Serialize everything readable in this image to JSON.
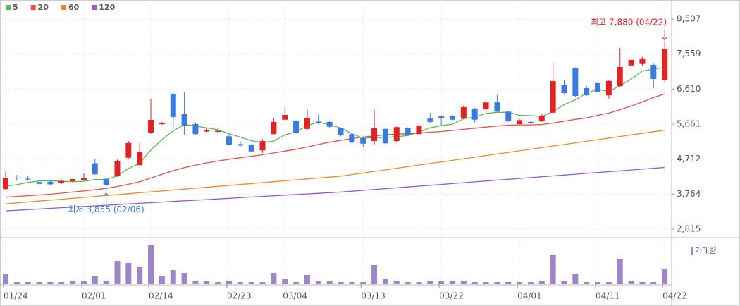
{
  "chart_data": {
    "type": "candlestick",
    "categories": [
      "01/24",
      null,
      null,
      null,
      null,
      null,
      null,
      "02/01",
      null,
      null,
      null,
      null,
      null,
      "02/14",
      null,
      null,
      null,
      null,
      null,
      null,
      "02/23",
      null,
      null,
      null,
      null,
      "03/04",
      null,
      null,
      null,
      null,
      null,
      null,
      "03/13",
      null,
      null,
      null,
      null,
      null,
      null,
      "03/22",
      null,
      null,
      null,
      null,
      null,
      null,
      "04/01",
      null,
      null,
      null,
      null,
      null,
      null,
      "04/11",
      null,
      null,
      null,
      null,
      null,
      "04/22"
    ],
    "open": [
      3900,
      4210,
      4180,
      4090,
      4100,
      4060,
      4110,
      4150,
      4600,
      4180,
      4250,
      4750,
      4550,
      5432,
      5660,
      6482,
      5930,
      5660,
      5460,
      5450,
      5330,
      5120,
      5100,
      4950,
      5390,
      5780,
      5740,
      5530,
      5730,
      5720,
      5550,
      5390,
      5280,
      5200,
      5530,
      5200,
      5550,
      5390,
      5810,
      5870,
      5890,
      5810,
      6080,
      6060,
      6250,
      6000,
      5660,
      5720,
      5740,
      5970,
      6730,
      7190,
      6636,
      6770,
      6440,
      6690,
      7250,
      7290,
      7266,
      6865
    ],
    "high": [
      4380,
      4280,
      4250,
      4120,
      4140,
      4160,
      4200,
      4330,
      4725,
      4200,
      4700,
      5200,
      5150,
      6348,
      5720,
      6510,
      6520,
      5700,
      5560,
      5550,
      5380,
      5200,
      5120,
      5250,
      5820,
      6120,
      5760,
      6060,
      5930,
      5740,
      5570,
      5440,
      5300,
      6043,
      5560,
      5600,
      5570,
      5650,
      5960,
      5900,
      5910,
      6160,
      6100,
      6330,
      6450,
      6010,
      5790,
      5760,
      5930,
      7303,
      6850,
      7200,
      6700,
      6790,
      6850,
      7724,
      7450,
      7480,
      7300,
      7880
    ],
    "low": [
      3870,
      4120,
      4120,
      4020,
      4000,
      4040,
      4090,
      4130,
      4290,
      3855,
      4230,
      4720,
      4530,
      5400,
      5640,
      5540,
      5370,
      5370,
      5440,
      5400,
      5080,
      5050,
      4900,
      4880,
      5380,
      5760,
      5400,
      5500,
      5650,
      5560,
      5330,
      5140,
      5040,
      5100,
      5120,
      5180,
      5340,
      5370,
      5680,
      5600,
      5760,
      5790,
      5700,
      6040,
      5980,
      5720,
      5640,
      5660,
      5720,
      5950,
      6480,
      6400,
      6420,
      6520,
      6350,
      6660,
      7150,
      7250,
      6636,
      6800
    ],
    "close": [
      4200,
      4200,
      4170,
      4040,
      4030,
      4120,
      4170,
      4200,
      4300,
      4000,
      4650,
      5150,
      4900,
      5776,
      5700,
      5850,
      5620,
      5390,
      5500,
      5480,
      5100,
      5080,
      4920,
      5200,
      5720,
      5910,
      5430,
      5830,
      5680,
      5590,
      5360,
      5160,
      5130,
      5550,
      5140,
      5580,
      5360,
      5620,
      5720,
      5830,
      5780,
      6120,
      5780,
      6250,
      6000,
      5740,
      5770,
      5690,
      5890,
      6826,
      6500,
      6425,
      6444,
      6540,
      6830,
      7208,
      7400,
      7440,
      6884,
      7686
    ],
    "up_color": "#e02424",
    "down_color": "#3a7be0",
    "series": [
      {
        "name": "5",
        "color": "#5cb85c",
        "values": [
          3980,
          4020,
          4080,
          4120,
          4130,
          4110,
          4100,
          4110,
          4160,
          4160,
          4260,
          4460,
          4600,
          4960,
          5240,
          5480,
          5650,
          5610,
          5560,
          5510,
          5400,
          5310,
          5210,
          5160,
          5200,
          5370,
          5450,
          5620,
          5720,
          5640,
          5560,
          5400,
          5280,
          5290,
          5300,
          5320,
          5350,
          5450,
          5560,
          5620,
          5660,
          5810,
          5850,
          5950,
          5980,
          5980,
          5900,
          5890,
          5870,
          6000,
          6190,
          6320,
          6500,
          6600,
          6550,
          6700,
          6880,
          7100,
          7150,
          7200
        ]
      },
      {
        "name": "20",
        "color": "#e8504a",
        "values": [
          3680,
          3700,
          3720,
          3740,
          3760,
          3790,
          3820,
          3850,
          3880,
          3920,
          3970,
          4030,
          4100,
          4200,
          4300,
          4400,
          4480,
          4550,
          4610,
          4660,
          4710,
          4750,
          4790,
          4830,
          4880,
          4930,
          4980,
          5040,
          5110,
          5170,
          5220,
          5270,
          5310,
          5340,
          5370,
          5390,
          5400,
          5420,
          5440,
          5460,
          5490,
          5520,
          5550,
          5580,
          5610,
          5630,
          5640,
          5640,
          5650,
          5690,
          5740,
          5790,
          5830,
          5900,
          5960,
          6050,
          6150,
          6260,
          6380,
          6480
        ]
      },
      {
        "name": "60",
        "color": "#f08a24",
        "values": [
          3500,
          3525,
          3550,
          3575,
          3600,
          3625,
          3650,
          3675,
          3700,
          3725,
          3750,
          3775,
          3800,
          3825,
          3850,
          3875,
          3900,
          3925,
          3950,
          3975,
          4000,
          4025,
          4050,
          4075,
          4100,
          4125,
          4150,
          4175,
          4200,
          4225,
          4250,
          4293,
          4336,
          4379,
          4422,
          4465,
          4508,
          4551,
          4594,
          4637,
          4680,
          4723,
          4766,
          4809,
          4852,
          4895,
          4938,
          4981,
          5024,
          5067,
          5110,
          5153,
          5196,
          5239,
          5282,
          5325,
          5368,
          5411,
          5454,
          5497
        ]
      },
      {
        "name": "120",
        "color": "#9b59d0",
        "values": [
          3310,
          3327,
          3344,
          3361,
          3378,
          3395,
          3412,
          3429,
          3446,
          3463,
          3480,
          3497,
          3514,
          3531,
          3548,
          3565,
          3582,
          3599,
          3616,
          3633,
          3650,
          3667,
          3684,
          3701,
          3718,
          3735,
          3752,
          3769,
          3786,
          3803,
          3820,
          3843,
          3866,
          3889,
          3912,
          3935,
          3958,
          3981,
          4004,
          4027,
          4050,
          4073,
          4096,
          4119,
          4142,
          4165,
          4188,
          4211,
          4234,
          4257,
          4280,
          4303,
          4326,
          4349,
          4372,
          4395,
          4418,
          4441,
          4464,
          4487
        ]
      }
    ],
    "volume": [
      14,
      3,
      3,
      3,
      3,
      3,
      4,
      4,
      11,
      5,
      33,
      30,
      25,
      55,
      12,
      20,
      16,
      5,
      4,
      3,
      5,
      3,
      3,
      3,
      16,
      8,
      3,
      13,
      5,
      4,
      3,
      3,
      3,
      27,
      7,
      4,
      3,
      3,
      4,
      4,
      4,
      5,
      3,
      3,
      3,
      3,
      3,
      3,
      4,
      42,
      5,
      15,
      3,
      3,
      3,
      36,
      5,
      3,
      3,
      22
    ],
    "volume_name": "거래량",
    "volume_color": "#9d86c8",
    "ylim": [
      2624,
      9023
    ],
    "yticks": [
      {
        "value": 8507,
        "label": "8,507"
      },
      {
        "value": 7559,
        "label": "7,559"
      },
      {
        "value": 6610,
        "label": "6,610"
      },
      {
        "value": 5661,
        "label": "5,661"
      },
      {
        "value": 4712,
        "label": "4,712"
      },
      {
        "value": 3764,
        "label": "3,764"
      },
      {
        "value": 2815,
        "label": "2,815"
      }
    ],
    "high_label": "최고 7,880 (04/22)",
    "high_color": "#e02424",
    "low_label": "최저 3,855 (02/06)",
    "low_color": "#3a7be0",
    "grid": true
  }
}
